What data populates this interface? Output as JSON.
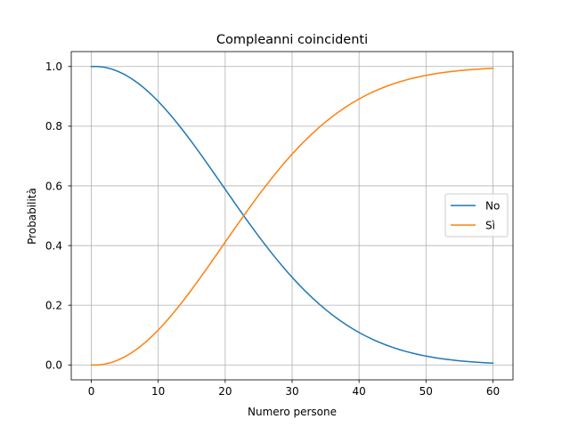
{
  "chart_data": {
    "type": "line",
    "title": "Compleanni coincidenti",
    "xlabel": "Numero persone",
    "ylabel": "Probabilità",
    "xlim": [
      -3,
      63
    ],
    "ylim": [
      -0.05,
      1.05
    ],
    "xticks": [
      0,
      10,
      20,
      30,
      40,
      50,
      60
    ],
    "yticks": [
      0.0,
      0.2,
      0.4,
      0.6,
      0.8,
      1.0
    ],
    "xtick_labels": [
      "0",
      "10",
      "20",
      "30",
      "40",
      "50",
      "60"
    ],
    "ytick_labels": [
      "0.0",
      "0.2",
      "0.4",
      "0.6",
      "0.8",
      "1.0"
    ],
    "grid": true,
    "legend_position": "right",
    "x": [
      0,
      1,
      2,
      3,
      4,
      5,
      6,
      7,
      8,
      9,
      10,
      11,
      12,
      13,
      14,
      15,
      16,
      17,
      18,
      19,
      20,
      21,
      22,
      23,
      24,
      25,
      26,
      27,
      28,
      29,
      30,
      31,
      32,
      33,
      34,
      35,
      36,
      37,
      38,
      39,
      40,
      41,
      42,
      43,
      44,
      45,
      46,
      47,
      48,
      49,
      50,
      51,
      52,
      53,
      54,
      55,
      56,
      57,
      58,
      59,
      60
    ],
    "series": [
      {
        "name": "No",
        "color": "#1f77b4",
        "values": [
          1.0,
          1.0,
          0.9973,
          0.9918,
          0.9836,
          0.9729,
          0.9595,
          0.9438,
          0.9257,
          0.9054,
          0.8831,
          0.8589,
          0.833,
          0.8056,
          0.7769,
          0.7471,
          0.7164,
          0.685,
          0.6531,
          0.6209,
          0.5886,
          0.5563,
          0.5243,
          0.4927,
          0.4617,
          0.4313,
          0.4018,
          0.3731,
          0.3455,
          0.319,
          0.2937,
          0.2695,
          0.2467,
          0.2251,
          0.2047,
          0.1856,
          0.1678,
          0.1513,
          0.136,
          0.1219,
          0.1088,
          0.0968,
          0.0859,
          0.076,
          0.067,
          0.059,
          0.0517,
          0.0452,
          0.0394,
          0.0342,
          0.0296,
          0.0256,
          0.022,
          0.0189,
          0.0162,
          0.0138,
          0.0117,
          0.0099,
          0.0084,
          0.007,
          0.0059
        ]
      },
      {
        "name": "Sì",
        "color": "#ff7f0e",
        "values": [
          0.0,
          0.0,
          0.0027,
          0.0082,
          0.0164,
          0.0271,
          0.0405,
          0.0562,
          0.0743,
          0.0946,
          0.1169,
          0.1411,
          0.167,
          0.1944,
          0.2231,
          0.2529,
          0.2836,
          0.315,
          0.3469,
          0.3791,
          0.4114,
          0.4437,
          0.4757,
          0.5073,
          0.5383,
          0.5687,
          0.5982,
          0.6269,
          0.6545,
          0.681,
          0.7063,
          0.7305,
          0.7533,
          0.7749,
          0.7953,
          0.8144,
          0.8322,
          0.8487,
          0.864,
          0.8781,
          0.8912,
          0.9032,
          0.9141,
          0.924,
          0.933,
          0.941,
          0.9483,
          0.9548,
          0.9606,
          0.9658,
          0.9704,
          0.9744,
          0.978,
          0.9811,
          0.9838,
          0.9862,
          0.9883,
          0.9901,
          0.9916,
          0.993,
          0.9941
        ]
      }
    ]
  }
}
